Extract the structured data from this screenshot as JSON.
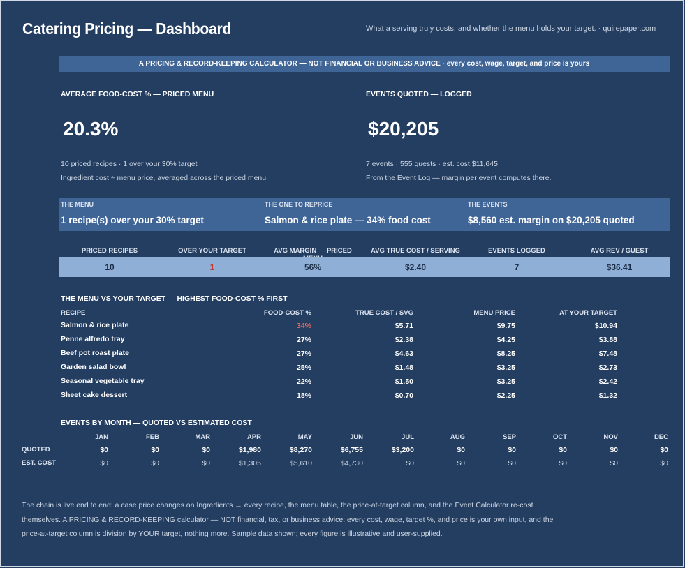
{
  "header": {
    "title": "Catering Pricing — Dashboard",
    "tagline": "What a serving truly costs, and whether the menu holds your target.  ·  quirepaper.com"
  },
  "banner": "A PRICING & RECORD-KEEPING CALCULATOR — NOT FINANCIAL OR BUSINESS ADVICE  ·  every cost, wage, target, and price is yours",
  "kpi_left": {
    "label": "AVERAGE FOOD-COST % — PRICED MENU",
    "value": "20.3%",
    "sub1": "10 priced recipes  ·  1 over your 30% target",
    "sub2": "Ingredient cost ÷ menu price, averaged across the priced menu."
  },
  "kpi_right": {
    "label": "EVENTS QUOTED — LOGGED",
    "value": "$20,205",
    "sub1": "7 events  ·  555 guests  ·  est. cost $11,645",
    "sub2": "From the Event Log — margin per event computes there."
  },
  "callouts": [
    {
      "label": "THE MENU",
      "value": "1 recipe(s) over your 30% target"
    },
    {
      "label": "THE ONE TO REPRICE",
      "value": "Salmon & rice plate — 34% food cost"
    },
    {
      "label": "THE EVENTS",
      "value": "$8,560 est. margin on $20,205 quoted"
    }
  ],
  "stats": [
    {
      "label": "PRICED RECIPES",
      "value": "10"
    },
    {
      "label": "OVER YOUR TARGET",
      "value": "1"
    },
    {
      "label": "AVG MARGIN — PRICED MENU",
      "value": "56%"
    },
    {
      "label": "AVG TRUE COST / SERVING",
      "value": "$2.40"
    },
    {
      "label": "EVENTS LOGGED",
      "value": "7"
    },
    {
      "label": "AVG REV / GUEST",
      "value": "$36.41"
    }
  ],
  "menu_table": {
    "title": "THE MENU VS YOUR TARGET — HIGHEST FOOD-COST % FIRST",
    "headers": [
      "RECIPE",
      "FOOD-COST %",
      "TRUE COST / SVG",
      "MENU PRICE",
      "AT YOUR TARGET"
    ],
    "rows": [
      {
        "recipe": "Salmon & rice plate",
        "pct": "34%",
        "cost": "$5.71",
        "price": "$9.75",
        "target": "$10.94"
      },
      {
        "recipe": "Penne alfredo tray",
        "pct": "27%",
        "cost": "$2.38",
        "price": "$4.25",
        "target": "$3.88"
      },
      {
        "recipe": "Beef pot roast plate",
        "pct": "27%",
        "cost": "$4.63",
        "price": "$8.25",
        "target": "$7.48"
      },
      {
        "recipe": "Garden salad bowl",
        "pct": "25%",
        "cost": "$1.48",
        "price": "$3.25",
        "target": "$2.73"
      },
      {
        "recipe": "Seasonal vegetable tray",
        "pct": "22%",
        "cost": "$1.50",
        "price": "$3.25",
        "target": "$2.42"
      },
      {
        "recipe": "Sheet cake dessert",
        "pct": "18%",
        "cost": "$0.70",
        "price": "$2.25",
        "target": "$1.32"
      }
    ]
  },
  "events_by_month": {
    "title": "EVENTS BY MONTH — QUOTED VS ESTIMATED COST",
    "row_labels": [
      "QUOTED",
      "EST. COST"
    ],
    "months": [
      "JAN",
      "FEB",
      "MAR",
      "APR",
      "MAY",
      "JUN",
      "JUL",
      "AUG",
      "SEP",
      "OCT",
      "NOV",
      "DEC"
    ],
    "quoted": [
      "$0",
      "$0",
      "$0",
      "$1,980",
      "$8,270",
      "$6,755",
      "$3,200",
      "$0",
      "$0",
      "$0",
      "$0",
      "$0"
    ],
    "est_cost": [
      "$0",
      "$0",
      "$0",
      "$1,305",
      "$5,610",
      "$4,730",
      "$0",
      "$0",
      "$0",
      "$0",
      "$0",
      "$0"
    ]
  },
  "footer": [
    "The chain is live end to end: a case price changes on Ingredients → every recipe, the menu table, the price-at-target column, and the Event Calculator re-cost",
    "themselves. A PRICING & RECORD-KEEPING calculator — NOT financial, tax, or business advice: every cost, wage, target %, and price is your own input, and the",
    "price-at-target column is division by YOUR target, nothing more. Sample data shown; every figure is illustrative and user-supplied."
  ],
  "colors": {
    "background": "#243e61",
    "banner": "#3f6496",
    "stats_bar": "#8fafd6",
    "over_target": "#e06a63"
  }
}
